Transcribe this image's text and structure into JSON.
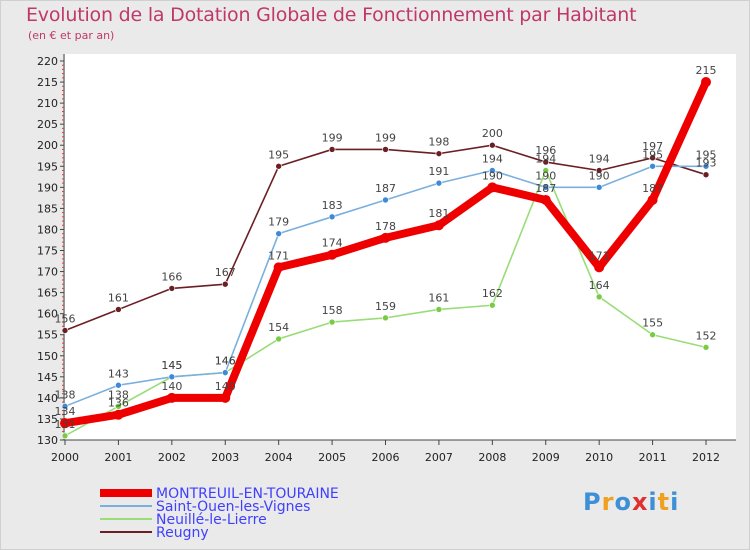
{
  "chart_data": {
    "type": "line",
    "title": "Evolution de la Dotation Globale de Fonctionnement par Habitant",
    "subtitle": "(en € et par an)",
    "x": [
      "2000",
      "2001",
      "2002",
      "2003",
      "2004",
      "2005",
      "2006",
      "2007",
      "2008",
      "2009",
      "2010",
      "2011",
      "2012"
    ],
    "ylim": [
      130,
      220
    ],
    "yticks": [
      "130",
      "135",
      "140",
      "145",
      "150",
      "155",
      "160",
      "165",
      "170",
      "175",
      "180",
      "185",
      "190",
      "195",
      "200",
      "205",
      "210",
      "215",
      "220"
    ],
    "grid": false,
    "legend_position": "bottom-left",
    "series": [
      {
        "name": "Reugny",
        "color": "#6b1f24",
        "point_color": "#6b1f24",
        "values": [
          156,
          161,
          166,
          167,
          195,
          199,
          199,
          198,
          200,
          196,
          194,
          197,
          193
        ],
        "labels": [
          "156",
          "161",
          "166",
          "167",
          "195",
          "199",
          "199",
          "198",
          "200",
          "196",
          "194",
          "197",
          "193"
        ]
      },
      {
        "name": "Neuillé-le-Lierre",
        "color": "#99dd77",
        "point_color": "#77cc44",
        "values": [
          131,
          138,
          145,
          146,
          154,
          158,
          159,
          161,
          162,
          194,
          164,
          155,
          152
        ],
        "labels": [
          "131",
          "138",
          "145",
          "146",
          "154",
          "158",
          "159",
          "161",
          "162",
          "194",
          "164",
          "155",
          "152"
        ]
      },
      {
        "name": "Saint-Ouen-les-Vignes",
        "color": "#7ab0dd",
        "point_color": "#3d8ad8",
        "values": [
          138,
          143,
          145,
          146,
          179,
          183,
          187,
          191,
          194,
          190,
          190,
          195,
          195
        ],
        "labels": [
          "138",
          "143",
          "145",
          "146",
          "179",
          "183",
          "187",
          "191",
          "194",
          "190",
          "190",
          "195",
          "195"
        ]
      },
      {
        "name": "MONTREUIL-EN-TOURAINE",
        "color": "#ee0000",
        "point_color": "#ee0000",
        "values": [
          134,
          136,
          140,
          140,
          171,
          174,
          178,
          181,
          190,
          187,
          171,
          187,
          215
        ],
        "labels": [
          "134",
          "136",
          "140",
          "140",
          "171",
          "174",
          "178",
          "181",
          "190",
          "187",
          "171",
          "187",
          "215"
        ]
      }
    ],
    "legend": [
      {
        "name": "MONTREUIL-EN-TOURAINE",
        "color": "#ee0000",
        "text_color": "#3f3fff"
      },
      {
        "name": "Saint-Ouen-les-Vignes",
        "color": "#7ab0dd",
        "text_color": "#3f3fff"
      },
      {
        "name": "Neuillé-le-Lierre",
        "color": "#99dd77",
        "text_color": "#3f3fff"
      },
      {
        "name": "Reugny",
        "color": "#6b1f24",
        "text_color": "#3f3fff"
      }
    ]
  },
  "logo": {
    "letters": [
      "P",
      "r",
      "o",
      "x",
      "i",
      "t",
      "i"
    ],
    "colors": [
      "#3f8fd6",
      "#f0a020",
      "#3f8fd6",
      "#e03030",
      "#3f8fd6",
      "#f0a020",
      "#3f8fd6"
    ]
  }
}
